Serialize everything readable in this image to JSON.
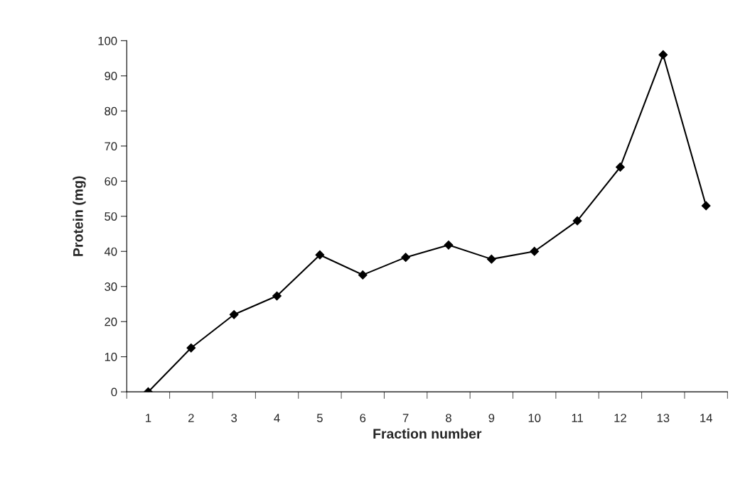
{
  "chart_data": {
    "type": "line",
    "xlabel": "Fraction number",
    "ylabel": "Protein (mg)",
    "categories": [
      "1",
      "2",
      "3",
      "4",
      "5",
      "6",
      "7",
      "8",
      "9",
      "10",
      "11",
      "12",
      "13",
      "14"
    ],
    "series": [
      {
        "color": "#000000",
        "values": [
          0,
          12.5,
          22,
          27.3,
          39,
          33.3,
          38.3,
          41.8,
          37.8,
          40,
          48.7,
          64,
          96,
          53
        ]
      }
    ],
    "ylim": [
      0,
      100
    ],
    "yticks": [
      0,
      10,
      20,
      30,
      40,
      50,
      60,
      70,
      80,
      90,
      100
    ],
    "grid": false,
    "legend": false,
    "marker": "diamond",
    "line_style": "solid"
  }
}
